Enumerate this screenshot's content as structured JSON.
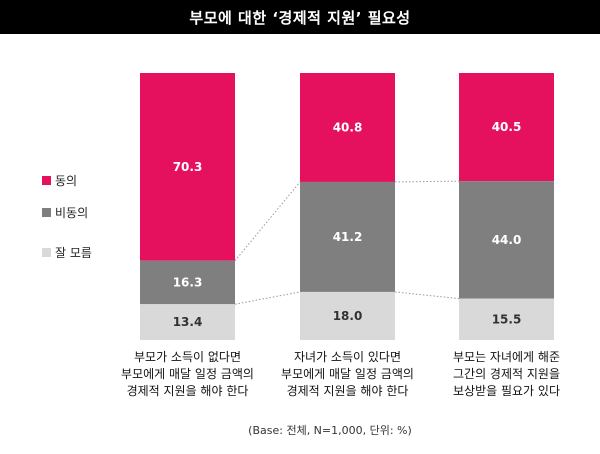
{
  "title": "부모에 대한 ‘경제적 지원’ 필요성",
  "note": "(Base: 전체, N=1,000, 단위: %)",
  "colors": {
    "agree": "#e5105e",
    "neutral": "#7f7f7f",
    "unknown": "#d9d9d9"
  },
  "chart_data": {
    "type": "bar",
    "stacked": true,
    "percent": true,
    "categories": [
      [
        "부모가 소득이 없다면",
        "부모에게 매달 일정 금액의",
        "경제적 지원을 해야 한다"
      ],
      [
        "자녀가 소득이 있다면",
        "부모에게 매달 일정 금액의",
        "경제적 지원을 해야 한다"
      ],
      [
        "부모는 자녀에게 해준",
        "그간의 경제적 지원을",
        "보상받을 필요가 있다"
      ]
    ],
    "series": [
      {
        "name": "동의",
        "values": [
          70.3,
          40.8,
          40.5
        ],
        "labels": [
          "70.3",
          "40.8",
          "40.5"
        ]
      },
      {
        "name": "비동의",
        "values": [
          16.3,
          41.2,
          44.0
        ],
        "labels": [
          "16.3",
          "41.2",
          "44.0"
        ]
      },
      {
        "name": "잘 모름",
        "values": [
          13.4,
          18.0,
          15.5
        ],
        "labels": [
          "13.4",
          "18.0",
          "15.5"
        ]
      }
    ],
    "legend": [
      "동의",
      "비동의",
      "잘 모름"
    ],
    "legend_position": "left",
    "ylim": [
      0,
      100
    ],
    "grid": false
  }
}
